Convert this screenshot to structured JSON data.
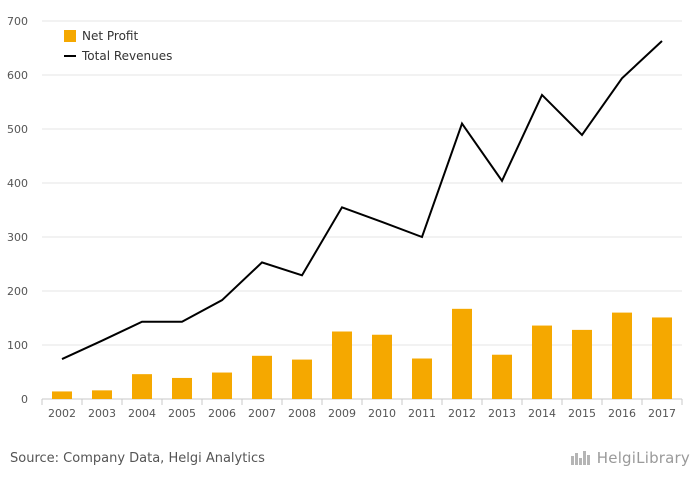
{
  "chart_data": {
    "type": "bar",
    "categories": [
      "2002",
      "2003",
      "2004",
      "2005",
      "2006",
      "2007",
      "2008",
      "2009",
      "2010",
      "2011",
      "2012",
      "2013",
      "2014",
      "2015",
      "2016",
      "2017"
    ],
    "series": [
      {
        "name": "Net Profit",
        "type": "bar",
        "color": "#f5a800",
        "values": [
          14,
          16,
          46,
          39,
          49,
          80,
          73,
          125,
          119,
          75,
          167,
          82,
          136,
          128,
          160,
          151
        ]
      },
      {
        "name": "Total Revenues",
        "type": "line",
        "color": "#000000",
        "values": [
          74,
          108,
          143,
          143,
          183,
          253,
          229,
          355,
          328,
          300,
          510,
          404,
          563,
          489,
          594,
          663
        ]
      }
    ],
    "ylim": [
      0,
      700
    ],
    "yticks": [
      0,
      100,
      200,
      300,
      400,
      500,
      600,
      700
    ],
    "grid": true,
    "legend_position": "top-left"
  },
  "footer": {
    "source": "Source: Company Data, Helgi Analytics",
    "brand": "HelgiLibrary"
  }
}
